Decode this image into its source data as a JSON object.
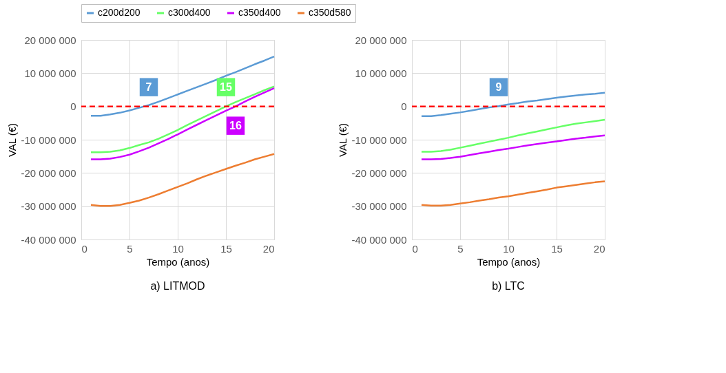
{
  "chart_data": [
    {
      "type": "line",
      "title": "a) LITMOD",
      "xlabel": "Tempo (anos)",
      "ylabel": "VAL (€)",
      "x": [
        1,
        2,
        3,
        4,
        5,
        6,
        7,
        8,
        9,
        10,
        11,
        12,
        13,
        14,
        15,
        16,
        17,
        18,
        19,
        20
      ],
      "series": [
        {
          "name": "c200d200",
          "color": "#5b9bd5",
          "values": [
            -2800000,
            -2800000,
            -2400000,
            -1900000,
            -1200000,
            -400000,
            400000,
            1400000,
            2500000,
            3600000,
            4700000,
            5800000,
            6900000,
            8000000,
            9200000,
            10300000,
            11500000,
            12700000,
            13800000,
            15000000
          ]
        },
        {
          "name": "c300d400",
          "color": "#66ff66",
          "values": [
            -13800000,
            -13800000,
            -13600000,
            -13200000,
            -12500000,
            -11600000,
            -10800000,
            -9700000,
            -8400000,
            -7100000,
            -5600000,
            -4200000,
            -2800000,
            -1400000,
            0,
            1300000,
            2500000,
            3700000,
            4900000,
            6000000
          ]
        },
        {
          "name": "c350d400",
          "color": "#cc00ff",
          "values": [
            -15900000,
            -15900000,
            -15700000,
            -15200000,
            -14500000,
            -13500000,
            -12400000,
            -11100000,
            -9800000,
            -8400000,
            -6900000,
            -5500000,
            -4100000,
            -2700000,
            -1300000,
            0,
            1500000,
            2900000,
            4200000,
            5500000
          ]
        },
        {
          "name": "c350d580",
          "color": "#ed7d31",
          "values": [
            -29600000,
            -29900000,
            -29900000,
            -29600000,
            -29000000,
            -28300000,
            -27400000,
            -26400000,
            -25300000,
            -24200000,
            -23100000,
            -21900000,
            -20800000,
            -19800000,
            -18800000,
            -17800000,
            -16900000,
            -15900000,
            -15100000,
            -14300000
          ]
        }
      ],
      "xlim": [
        0,
        20
      ],
      "xticks": [
        0,
        5,
        10,
        15,
        20
      ],
      "ylim": [
        -40000000,
        20000000
      ],
      "yticks": [
        {
          "value": -40000000,
          "label": "-40 000 000"
        },
        {
          "value": -30000000,
          "label": "-30 000 000"
        },
        {
          "value": -20000000,
          "label": "-20 000 000"
        },
        {
          "value": -10000000,
          "label": "-10 000 000"
        },
        0,
        {
          "value": 10000000,
          "label": "10 000 000"
        },
        {
          "value": 20000000,
          "label": "20 000 000"
        }
      ],
      "ref_lines": [
        {
          "axis": "y",
          "value": 0,
          "color": "#ff0000",
          "line_style": "dashed"
        }
      ],
      "annotations": [
        {
          "text": "7",
          "x": 7,
          "y": 0
        },
        {
          "text": "15",
          "x": 15,
          "y": 0
        },
        {
          "text": "16",
          "x": 16,
          "y": 0
        }
      ],
      "grid": true,
      "legend": "top right",
      "marker": "none",
      "line_style": "solid"
    },
    {
      "type": "line",
      "title": "b) LTC",
      "xlabel": "Tempo (anos)",
      "ylabel": "VAL (€)",
      "x": [
        1,
        2,
        3,
        4,
        5,
        6,
        7,
        8,
        9,
        10,
        11,
        12,
        13,
        14,
        15,
        16,
        17,
        18,
        19,
        20
      ],
      "series": [
        {
          "name": "c200d200",
          "color": "#5b9bd5",
          "values": [
            -2900000,
            -2900000,
            -2600000,
            -2200000,
            -1800000,
            -1300000,
            -800000,
            -300000,
            100000,
            600000,
            1000000,
            1500000,
            1800000,
            2200000,
            2600000,
            3000000,
            3300000,
            3600000,
            3800000,
            4100000
          ]
        },
        {
          "name": "c300d400",
          "color": "#66ff66",
          "values": [
            -13600000,
            -13600000,
            -13400000,
            -13000000,
            -12400000,
            -11800000,
            -11200000,
            -10600000,
            -10000000,
            -9400000,
            -8700000,
            -8100000,
            -7500000,
            -6900000,
            -6300000,
            -5700000,
            -5200000,
            -4800000,
            -4400000,
            -4000000
          ]
        },
        {
          "name": "c350d400",
          "color": "#cc00ff",
          "values": [
            -15900000,
            -15900000,
            -15800000,
            -15500000,
            -15100000,
            -14600000,
            -14100000,
            -13600000,
            -13100000,
            -12700000,
            -12200000,
            -11700000,
            -11300000,
            -10900000,
            -10500000,
            -10100000,
            -9700000,
            -9400000,
            -9000000,
            -8700000
          ]
        },
        {
          "name": "c350d580",
          "color": "#ed7d31",
          "values": [
            -29600000,
            -29800000,
            -29800000,
            -29600000,
            -29200000,
            -28800000,
            -28300000,
            -27900000,
            -27400000,
            -27000000,
            -26500000,
            -26000000,
            -25500000,
            -25000000,
            -24400000,
            -24000000,
            -23600000,
            -23200000,
            -22800000,
            -22500000
          ]
        }
      ],
      "xlim": [
        0,
        20
      ],
      "xticks": [
        0,
        5,
        10,
        15,
        20
      ],
      "ylim": [
        -40000000,
        20000000
      ],
      "yticks": [
        {
          "value": -40000000,
          "label": "-40 000 000"
        },
        {
          "value": -30000000,
          "label": "-30 000 000"
        },
        {
          "value": -20000000,
          "label": "-20 000 000"
        },
        {
          "value": -10000000,
          "label": "-10 000 000"
        },
        0,
        {
          "value": 10000000,
          "label": "10 000 000"
        },
        {
          "value": 20000000,
          "label": "20 000 000"
        }
      ],
      "ref_lines": [
        {
          "axis": "y",
          "value": 0,
          "color": "#ff0000",
          "line_style": "dashed"
        }
      ],
      "annotations": [
        {
          "text": "9",
          "x": 9,
          "y": 0
        }
      ],
      "grid": true,
      "legend": "top right",
      "marker": "none",
      "line_style": "solid"
    }
  ]
}
